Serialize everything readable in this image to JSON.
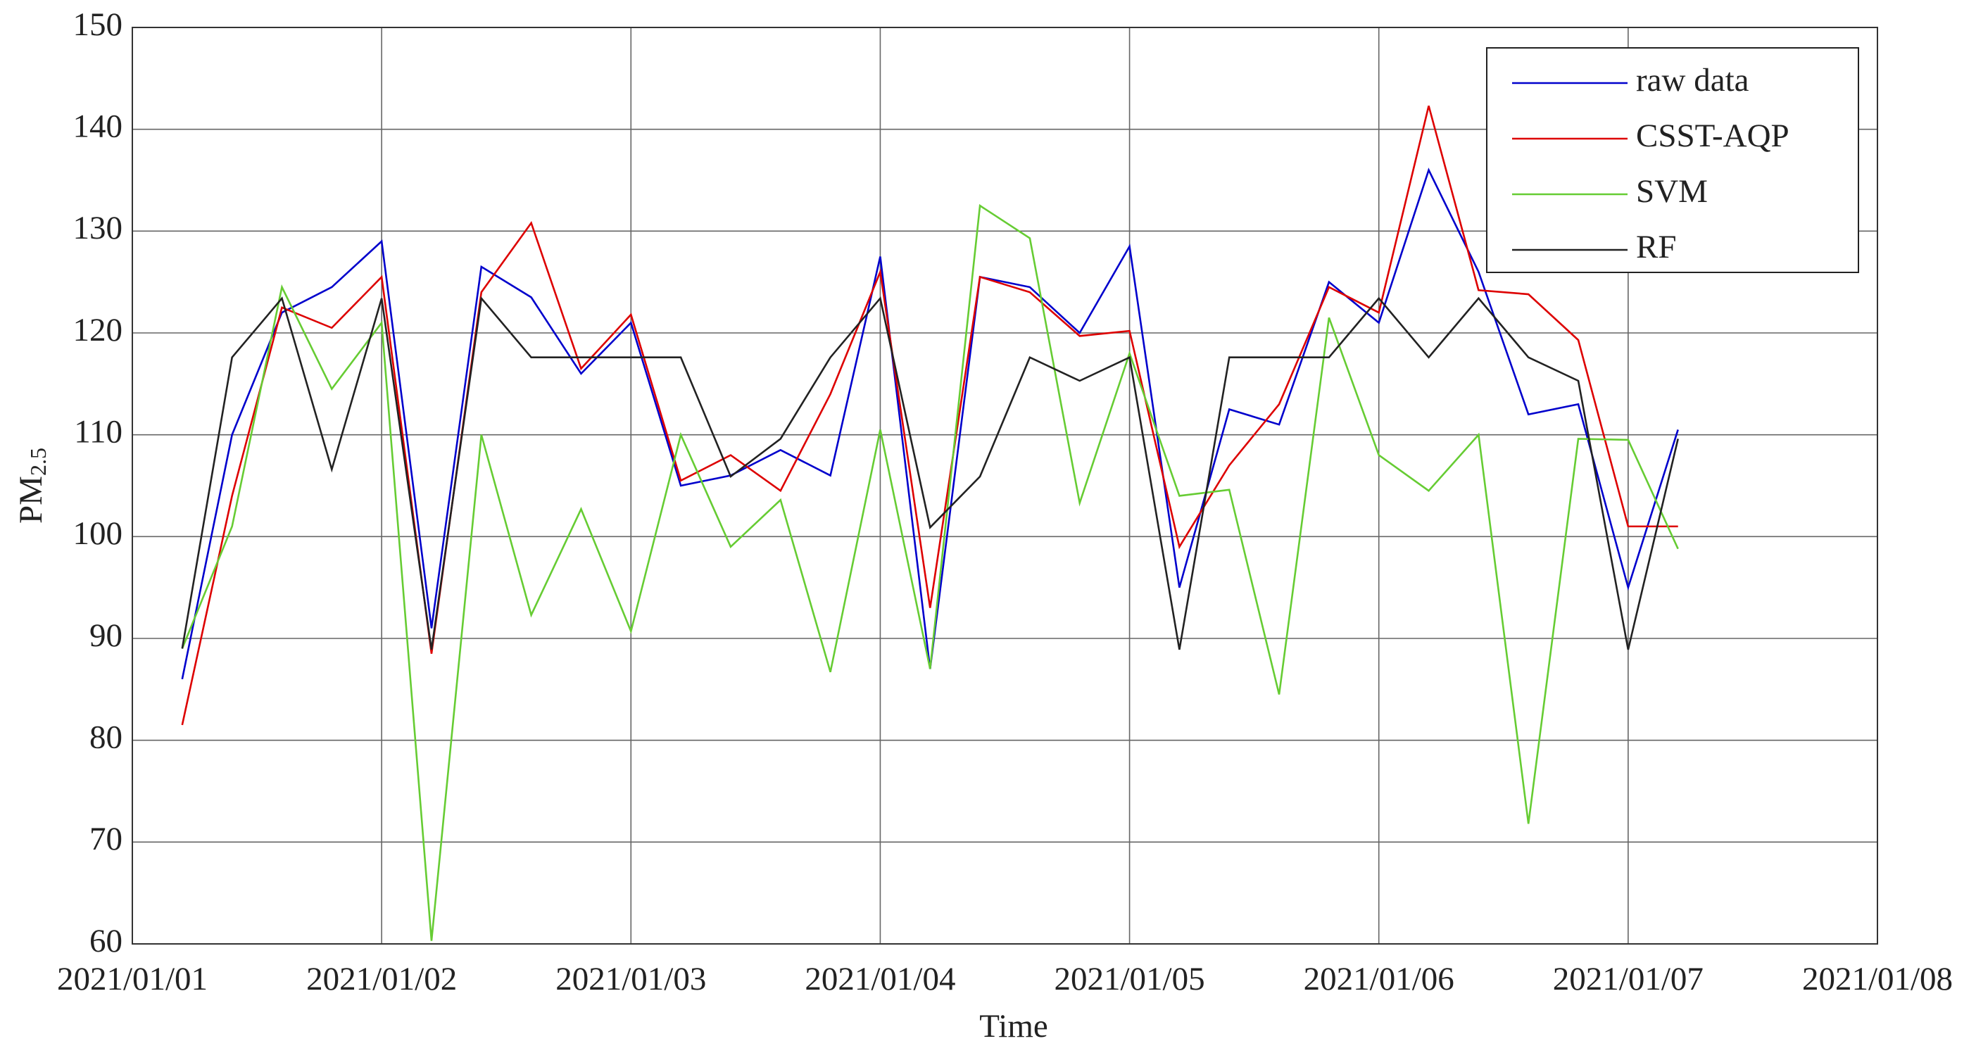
{
  "chart_data": {
    "type": "line",
    "xlabel": "Time",
    "ylabel": [
      "PM",
      "2.5"
    ],
    "xlim": [
      0,
      7
    ],
    "xticks": [
      {
        "value": 0,
        "label": "2021/01/01"
      },
      {
        "value": 1,
        "label": "2021/01/02"
      },
      {
        "value": 2,
        "label": "2021/01/03"
      },
      {
        "value": 3,
        "label": "2021/01/04"
      },
      {
        "value": 4,
        "label": "2021/01/05"
      },
      {
        "value": 5,
        "label": "2021/01/06"
      },
      {
        "value": 6,
        "label": "2021/01/07"
      },
      {
        "value": 7,
        "label": "2021/01/08"
      }
    ],
    "ylim": [
      60,
      150
    ],
    "yticks": [
      60,
      70,
      80,
      90,
      100,
      110,
      120,
      130,
      140,
      150
    ],
    "grid": true,
    "legend": "upper right",
    "x": [
      0.2,
      0.4,
      0.6,
      0.8,
      1.0,
      1.2,
      1.4,
      1.6,
      1.8,
      2.0,
      2.2,
      2.4,
      2.6,
      2.8,
      3.0,
      3.2,
      3.4,
      3.6,
      3.8,
      4.0,
      4.2,
      4.4,
      4.6,
      4.8,
      5.0,
      5.2,
      5.4,
      5.6,
      5.8,
      6.0,
      6.2
    ],
    "series": [
      {
        "name": "raw data",
        "color": "#0000cc",
        "values": [
          86,
          110,
          122,
          124.5,
          129,
          91,
          126.5,
          123.5,
          116,
          121,
          105,
          106,
          108.5,
          106,
          127.5,
          87,
          125.5,
          124.5,
          120,
          128.5,
          95,
          112.5,
          111,
          125,
          121,
          136,
          126,
          112,
          113,
          95,
          110.5
        ]
      },
      {
        "name": "CSST-AQP",
        "color": "#dd0000",
        "values": [
          81.5,
          104,
          122.5,
          120.5,
          125.5,
          88.5,
          124,
          130.8,
          116.5,
          121.8,
          105.5,
          108,
          104.5,
          114,
          126,
          93,
          125.5,
          124,
          119.7,
          120.2,
          99,
          107,
          113,
          124.5,
          122,
          142.3,
          124.2,
          123.8,
          119.3,
          101,
          101
        ]
      },
      {
        "name": "SVM",
        "color": "#66cc33",
        "values": [
          89,
          101,
          124.5,
          114.5,
          121,
          60.3,
          110,
          92.3,
          102.7,
          90.7,
          110,
          99,
          103.6,
          86.7,
          110.5,
          87,
          132.5,
          129.3,
          103.3,
          118,
          104,
          104.6,
          84.5,
          121.5,
          108,
          104.5,
          110,
          71.8,
          109.6,
          109.5,
          98.8
        ]
      },
      {
        "name": "RF",
        "color": "#222222",
        "values": [
          89,
          117.6,
          123.4,
          106.6,
          123.4,
          88.9,
          123.4,
          117.6,
          117.6,
          117.6,
          117.6,
          105.9,
          109.6,
          117.6,
          123.4,
          100.9,
          105.9,
          117.6,
          115.3,
          117.6,
          88.9,
          117.6,
          117.6,
          117.6,
          123.4,
          117.6,
          123.4,
          117.6,
          115.3,
          88.9,
          109.6
        ]
      }
    ]
  }
}
